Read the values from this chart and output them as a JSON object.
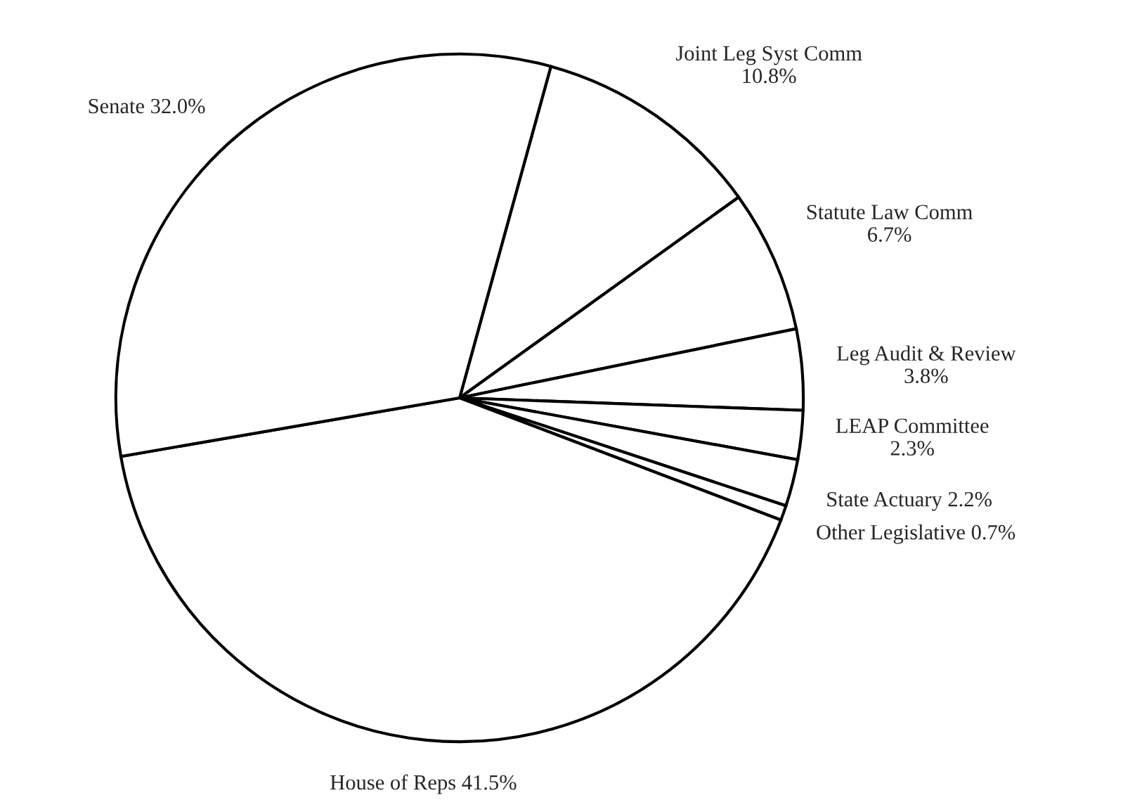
{
  "chart_data": {
    "type": "pie",
    "categories": [
      "Joint Leg Syst Comm",
      "Statute Law Comm",
      "Leg Audit & Review",
      "LEAP Committee",
      "State Actuary",
      "Other Legislative",
      "House of Reps",
      "Senate"
    ],
    "values": [
      10.8,
      6.7,
      3.8,
      2.3,
      2.2,
      0.7,
      41.5,
      32.0
    ],
    "value_labels": [
      "10.8%",
      "6.7%",
      "3.8%",
      "2.3%",
      "2.2%",
      "0.7%",
      "41.5%",
      "32.0%"
    ],
    "colors": [
      "#ffffff",
      "#ffffff",
      "#ffffff",
      "#ffffff",
      "#ffffff",
      "#ffffff",
      "#ffffff",
      "#ffffff"
    ],
    "legend": false
  }
}
